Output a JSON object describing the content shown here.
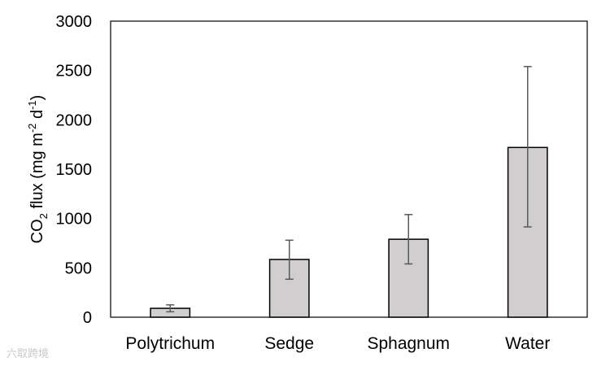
{
  "chart_data": {
    "type": "bar",
    "categories": [
      "Polytrichum",
      "Sedge",
      "Sphagnum",
      "Water"
    ],
    "values": [
      90,
      585,
      790,
      1720
    ],
    "error_upper": [
      125,
      780,
      1040,
      2540
    ],
    "error_lower": [
      55,
      385,
      540,
      915
    ],
    "ylabel_parts": {
      "a": "CO",
      "sub": "2",
      "b": " flux (mg m",
      "sup1": "-2",
      "c": " d",
      "sup2": "-1",
      "d": ")"
    },
    "ylim": [
      0,
      3000
    ],
    "yticks": [
      "0",
      "500",
      "1000",
      "1500",
      "2000",
      "2500",
      "3000"
    ],
    "ytick_values": [
      0,
      500,
      1000,
      1500,
      2000,
      2500,
      3000
    ],
    "bar_color": "#d0cece",
    "bar_edge_color": "#000000",
    "error_bar_color": "#595959",
    "grid": false,
    "legend": "none"
  },
  "watermark": "六取跨境"
}
